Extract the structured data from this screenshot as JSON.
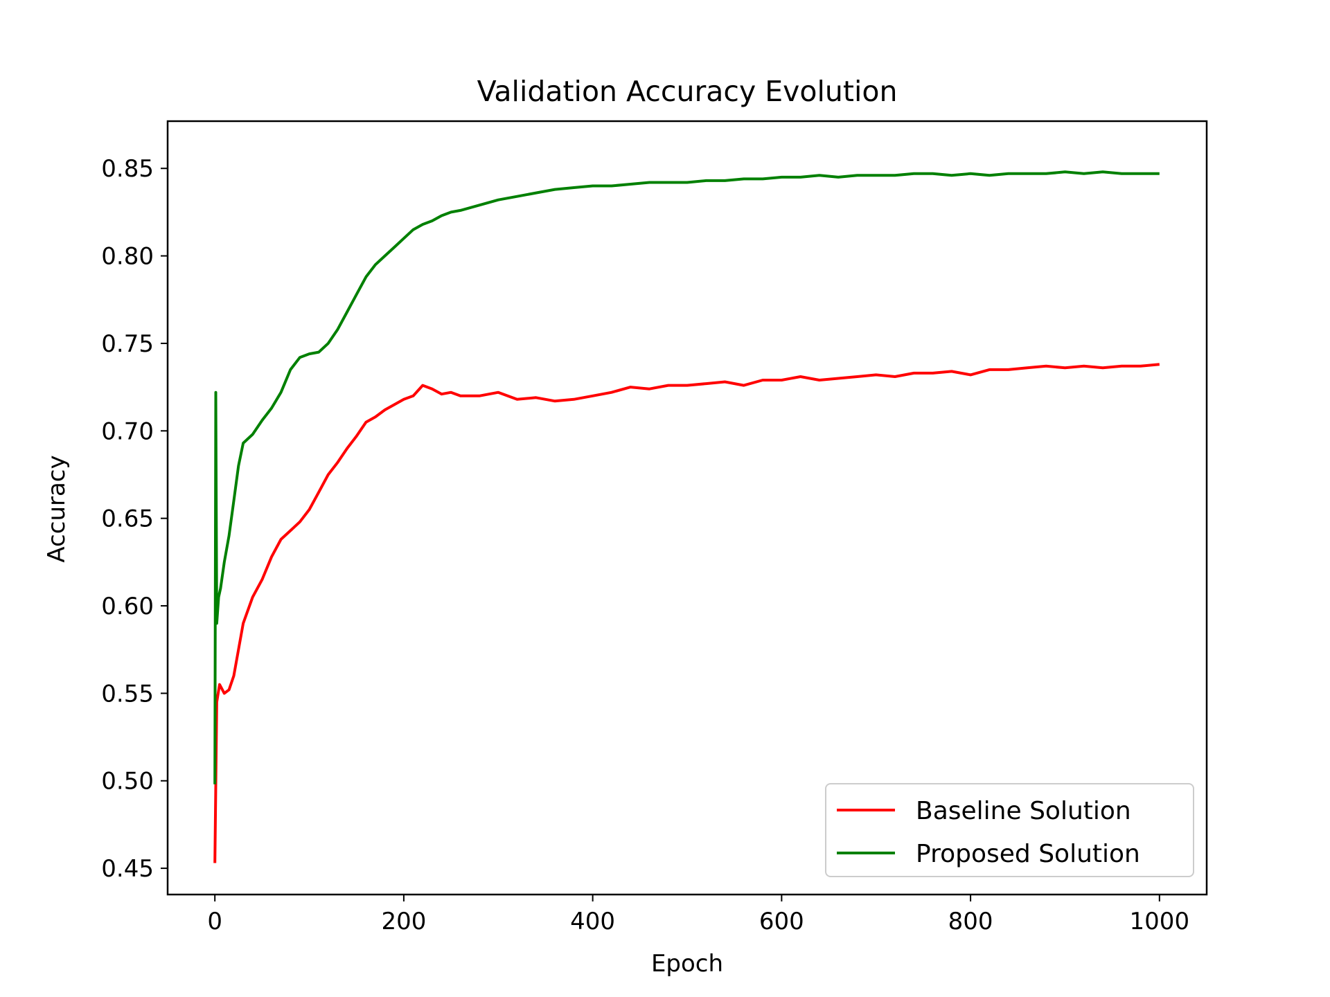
{
  "chart_data": {
    "type": "line",
    "title": "Validation Accuracy Evolution",
    "xlabel": "Epoch",
    "ylabel": "Accuracy",
    "xlim": [
      -50,
      1050
    ],
    "ylim": [
      0.435,
      0.877
    ],
    "xticks": [
      0,
      200,
      400,
      600,
      800,
      1000
    ],
    "xtick_labels": [
      "0",
      "200",
      "400",
      "600",
      "800",
      "1000"
    ],
    "yticks": [
      0.45,
      0.5,
      0.55,
      0.6,
      0.65,
      0.7,
      0.75,
      0.8,
      0.85
    ],
    "ytick_labels": [
      "0.45",
      "0.50",
      "0.55",
      "0.60",
      "0.65",
      "0.70",
      "0.75",
      "0.80",
      "0.85"
    ],
    "grid": false,
    "legend_position": "lower-right",
    "series": [
      {
        "name": "Baseline Solution",
        "color": "#ff0000",
        "x": [
          0,
          2,
          5,
          10,
          15,
          20,
          25,
          30,
          40,
          50,
          60,
          70,
          80,
          90,
          100,
          110,
          120,
          130,
          140,
          150,
          160,
          170,
          180,
          190,
          200,
          210,
          220,
          230,
          240,
          250,
          260,
          280,
          300,
          320,
          340,
          360,
          380,
          400,
          420,
          440,
          460,
          480,
          500,
          520,
          540,
          560,
          580,
          600,
          620,
          640,
          660,
          680,
          700,
          720,
          740,
          760,
          780,
          800,
          820,
          840,
          860,
          880,
          900,
          920,
          940,
          960,
          980,
          1000
        ],
        "y": [
          0.453,
          0.545,
          0.555,
          0.55,
          0.552,
          0.56,
          0.575,
          0.59,
          0.605,
          0.615,
          0.628,
          0.638,
          0.643,
          0.648,
          0.655,
          0.665,
          0.675,
          0.682,
          0.69,
          0.697,
          0.705,
          0.708,
          0.712,
          0.715,
          0.718,
          0.72,
          0.726,
          0.724,
          0.721,
          0.722,
          0.72,
          0.72,
          0.722,
          0.718,
          0.719,
          0.717,
          0.718,
          0.72,
          0.722,
          0.725,
          0.724,
          0.726,
          0.726,
          0.727,
          0.728,
          0.726,
          0.729,
          0.729,
          0.731,
          0.729,
          0.73,
          0.731,
          0.732,
          0.731,
          0.733,
          0.733,
          0.734,
          0.732,
          0.735,
          0.735,
          0.736,
          0.737,
          0.736,
          0.737,
          0.736,
          0.737,
          0.737,
          0.738
        ]
      },
      {
        "name": "Proposed Solution",
        "color": "#008000",
        "x": [
          0,
          1,
          2,
          4,
          6,
          10,
          15,
          20,
          25,
          30,
          40,
          50,
          60,
          70,
          80,
          90,
          100,
          110,
          120,
          130,
          140,
          150,
          160,
          170,
          180,
          190,
          200,
          210,
          220,
          230,
          240,
          250,
          260,
          280,
          300,
          320,
          340,
          360,
          380,
          400,
          420,
          440,
          460,
          480,
          500,
          520,
          540,
          560,
          580,
          600,
          620,
          640,
          660,
          680,
          700,
          720,
          740,
          760,
          780,
          800,
          820,
          840,
          860,
          880,
          900,
          920,
          940,
          960,
          980,
          1000
        ],
        "y": [
          0.498,
          0.722,
          0.59,
          0.605,
          0.61,
          0.625,
          0.64,
          0.66,
          0.68,
          0.693,
          0.698,
          0.706,
          0.713,
          0.722,
          0.735,
          0.742,
          0.744,
          0.745,
          0.75,
          0.758,
          0.768,
          0.778,
          0.788,
          0.795,
          0.8,
          0.805,
          0.81,
          0.815,
          0.818,
          0.82,
          0.823,
          0.825,
          0.826,
          0.829,
          0.832,
          0.834,
          0.836,
          0.838,
          0.839,
          0.84,
          0.84,
          0.841,
          0.842,
          0.842,
          0.842,
          0.843,
          0.843,
          0.844,
          0.844,
          0.845,
          0.845,
          0.846,
          0.845,
          0.846,
          0.846,
          0.846,
          0.847,
          0.847,
          0.846,
          0.847,
          0.846,
          0.847,
          0.847,
          0.847,
          0.848,
          0.847,
          0.848,
          0.847,
          0.847,
          0.847
        ]
      }
    ]
  }
}
